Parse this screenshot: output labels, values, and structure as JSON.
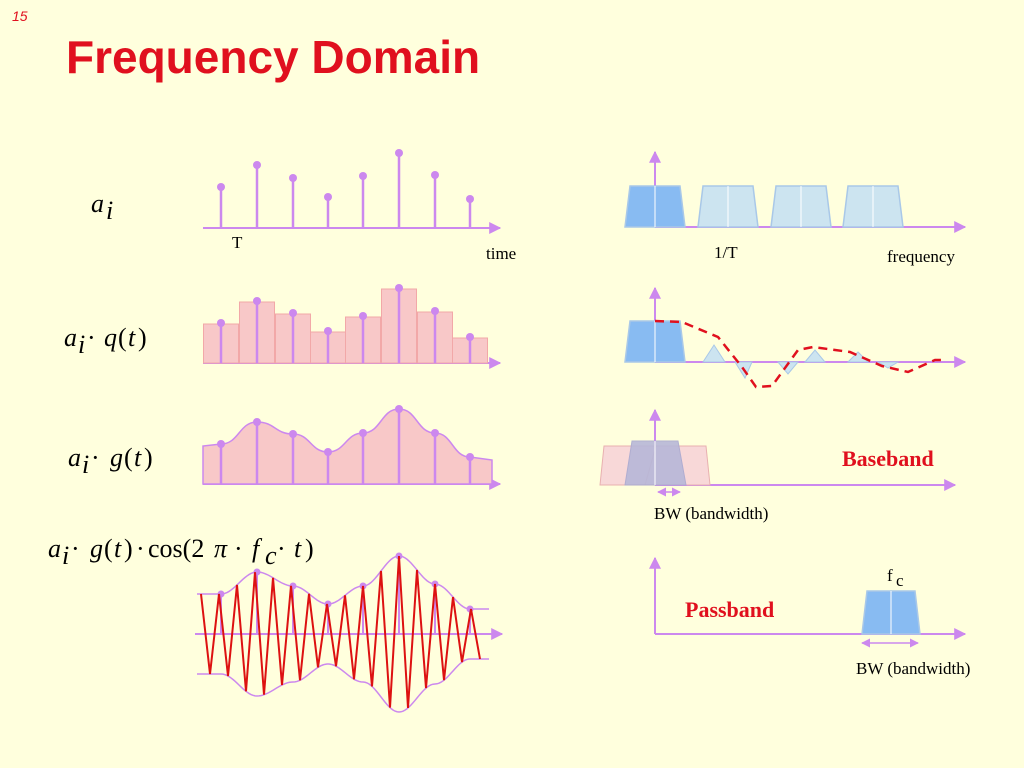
{
  "slide": {
    "number": "15",
    "title": "Frequency Domain"
  },
  "labels": {
    "period": "T",
    "time_axis": "time",
    "inverse_period": "1/T",
    "freq_axis": "frequency",
    "baseband": "Baseband",
    "passband": "Passband",
    "bandwidth": "BW (bandwidth)",
    "carrier_f": "f",
    "carrier_sub": "c"
  },
  "formulas": {
    "row1": {
      "a": "a",
      "i": "i"
    },
    "row2": {
      "a": "a",
      "i": "i",
      "dot": "·",
      "fn": "q",
      "open": "(",
      "t": "t",
      "close": ")"
    },
    "row3": {
      "a": "a",
      "i": "i",
      "dot": "·",
      "fn": "g",
      "open": "(",
      "t": "t",
      "close": ")"
    },
    "row4": {
      "a": "a",
      "i": "i",
      "dot1": "·",
      "fn": "g",
      "open": "(",
      "t": "t",
      "close": ")",
      "dot2": "·",
      "cos": "cos(2",
      "pi": "π",
      "dot3": "·",
      "f": "f",
      "c": "c",
      "dot4": "·",
      "t2": "t",
      "close2": ")"
    }
  },
  "colors": {
    "title": "#e0101e",
    "stem": "#cc88ee",
    "pulse_fill": "#f8c8c8",
    "spectrum_main": "#88bbf2",
    "spectrum_light": "#cce4f0",
    "carrier_wave": "#dd1111",
    "envelope_dash": "#e0101e",
    "background": "#ffffdd"
  }
}
